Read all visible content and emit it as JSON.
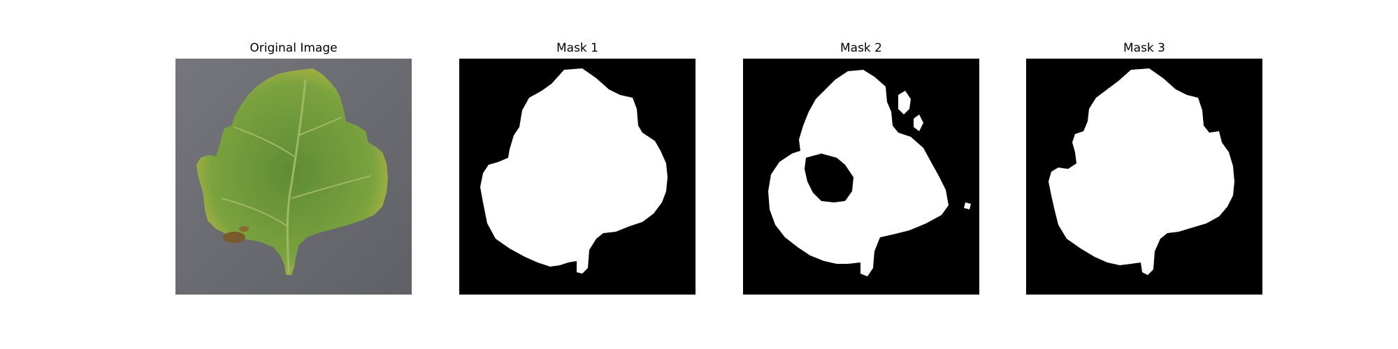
{
  "figure": {
    "panels": [
      {
        "title": "Original Image"
      },
      {
        "title": "Mask 1"
      },
      {
        "title": "Mask 2"
      },
      {
        "title": "Mask 3"
      }
    ]
  },
  "colors": {
    "background": "#ffffff",
    "mask_background": "#000000",
    "mask_foreground": "#ffffff",
    "photo_background": "#6d6e74",
    "leaf_green": "#6f9a3a",
    "leaf_yellow": "#c9c048",
    "leaf_vein": "#a6b870",
    "lesion_brown": "#7a5a2a"
  }
}
